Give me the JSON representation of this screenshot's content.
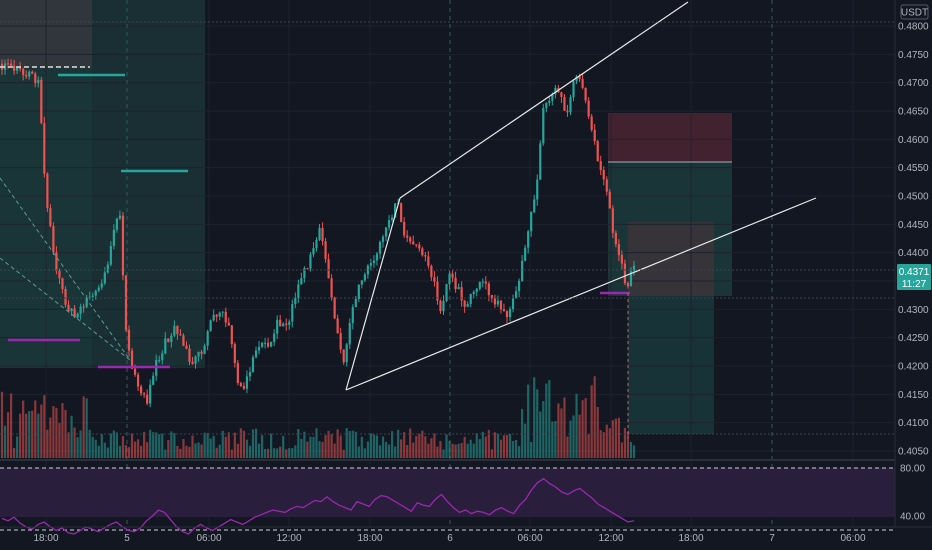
{
  "chart_data": {
    "type": "candlestick",
    "quote_currency": "USDT",
    "y_ticks": [
      "0.4800",
      "0.4750",
      "0.4700",
      "0.4650",
      "0.4600",
      "0.4550",
      "0.4500",
      "0.4450",
      "0.4400",
      "0.4350",
      "0.4300",
      "0.4250",
      "0.4200",
      "0.4150",
      "0.4100",
      "0.4050"
    ],
    "ylim": [
      0.404,
      0.482
    ],
    "x_ticks": [
      "18:00",
      "5",
      "06:00",
      "12:00",
      "18:00",
      "6",
      "06:00",
      "12:00",
      "18:00",
      "7",
      "06:00"
    ],
    "current_price": "0.4371",
    "countdown": "11:27",
    "bar_count": 210,
    "rsi": {
      "levels": [
        "80.00",
        "40.00"
      ],
      "values": [
        38,
        36,
        39,
        34,
        31,
        29,
        33,
        35,
        31,
        28,
        30,
        26,
        25,
        28,
        31,
        29,
        27,
        30,
        33,
        35,
        31,
        28,
        27,
        30,
        36,
        40,
        45,
        43,
        37,
        31,
        27,
        25,
        30,
        33,
        30,
        28,
        31,
        34,
        37,
        35,
        33,
        36,
        39,
        41,
        43,
        45,
        44,
        43,
        46,
        48,
        47,
        50,
        53,
        52,
        56,
        52,
        49,
        47,
        45,
        52,
        50,
        48,
        54,
        57,
        56,
        53,
        50,
        47,
        44,
        51,
        49,
        48,
        54,
        58,
        52,
        47,
        43,
        45,
        42,
        44,
        43,
        41,
        45,
        47,
        44,
        42,
        49,
        54,
        62,
        68,
        71,
        67,
        64,
        60,
        58,
        61,
        63,
        59,
        55,
        50,
        47,
        44,
        41,
        38,
        35,
        36
      ]
    },
    "colors": {
      "bull": "#26a69a",
      "bear": "#ef5350",
      "rsi": "#9c27b0",
      "rsi_band": "#2a1f3d",
      "background": "#131722",
      "price_tag": "#26a69a"
    }
  }
}
